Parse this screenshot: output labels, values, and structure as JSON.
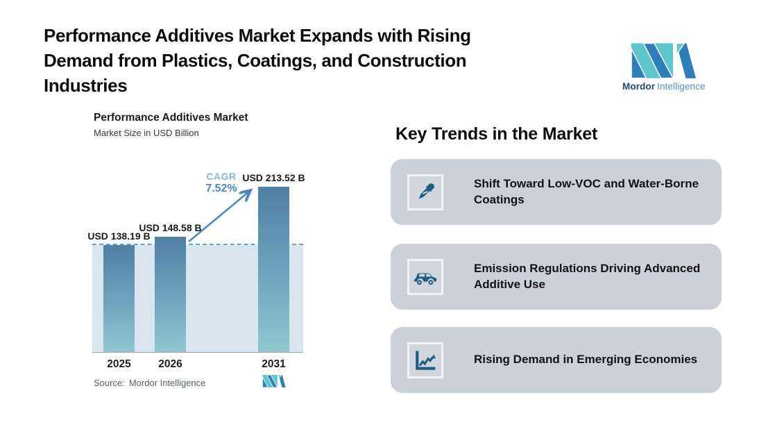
{
  "header": {
    "title": "Performance Additives Market Expands with Rising\nDemand from Plastics, Coatings, and Construction\nIndustries",
    "logo": {
      "brand_bold": "Mordor",
      "brand_light": "Intelligence",
      "teal": "#5ec5ce",
      "blue": "#2e7fb9"
    }
  },
  "chart_data": {
    "type": "bar",
    "title": "Performance Additives Market",
    "subtitle": "Market Size in USD Billion",
    "categories": [
      "2025",
      "2026",
      "2031"
    ],
    "values": [
      138.19,
      148.58,
      213.52
    ],
    "value_labels": [
      "USD 138.19 B",
      "USD 148.58 B",
      "USD 213.52 B"
    ],
    "unit": "USD Billion",
    "cagr_label": "CAGR",
    "cagr_value": "7.52%",
    "baseline_reference": 138.19,
    "grid": "off",
    "legend": "off",
    "bar_gradient": [
      "#4f7fa4",
      "#90c7cf"
    ],
    "band_color": "#d9e6ef",
    "dashed_line_color": "#68a0c8",
    "arrow_color": "#4d86be",
    "source_label": "Source:",
    "source_value": "Mordor Intelligence"
  },
  "trends": {
    "heading": "Key Trends in the Market",
    "card_bg": "#cbd1d7",
    "icon_color": "#1d5c84",
    "cards": [
      {
        "icon": "eyedropper-icon",
        "text": "Shift Toward Low-VOC and Water-Borne Coatings"
      },
      {
        "icon": "car-icon",
        "text": "Emission Regulations Driving Advanced Additive Use"
      },
      {
        "icon": "line-chart-icon",
        "text": "Rising Demand in Emerging Economies"
      }
    ]
  }
}
